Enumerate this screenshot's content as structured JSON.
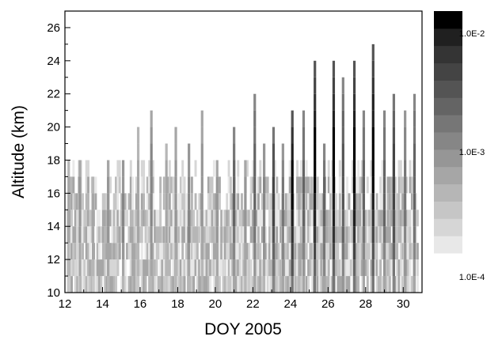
{
  "chart_data": {
    "type": "heatmap",
    "xlabel": "DOY 2005",
    "ylabel": "Altitude (km)",
    "xlim": [
      12,
      31
    ],
    "ylim": [
      10,
      27
    ],
    "x_ticks": [
      12,
      14,
      16,
      18,
      20,
      22,
      24,
      26,
      28,
      30
    ],
    "y_ticks": [
      10,
      12,
      14,
      16,
      18,
      20,
      22,
      24,
      26
    ],
    "x_tick_labels": [
      "12",
      "14",
      "16",
      "18",
      "20",
      "22",
      "24",
      "26",
      "28",
      "30"
    ],
    "y_tick_labels": [
      "10",
      "12",
      "14",
      "16",
      "18",
      "20",
      "22",
      "24",
      "26"
    ],
    "colorbar": {
      "scale": "log",
      "range": [
        0.0001,
        0.015
      ],
      "labels": [
        "1.0E-2",
        "1.0E-3",
        "1.0E-4"
      ],
      "label_values": [
        0.01,
        0.001,
        0.0001
      ],
      "levels": 14,
      "colors": [
        "#e8e8e8",
        "#d6d6d6",
        "#c6c6c6",
        "#b6b6b6",
        "#a6a6a6",
        "#969696",
        "#868686",
        "#767676",
        "#646464",
        "#545454",
        "#444444",
        "#343434",
        "#202020",
        "#000000"
      ]
    },
    "altitude_bins_km": [
      10,
      11,
      12,
      13,
      14,
      15,
      16,
      17,
      18,
      19,
      20,
      21,
      22,
      23,
      24,
      25,
      26
    ],
    "columns": [
      {
        "doy": 12.2,
        "top": 18.5,
        "max_level": 4
      },
      {
        "doy": 12.8,
        "top": 18.5,
        "max_level": 5
      },
      {
        "doy": 13.5,
        "top": 17.5,
        "max_level": 4
      },
      {
        "doy": 14.3,
        "top": 18.5,
        "max_level": 5
      },
      {
        "doy": 15.1,
        "top": 18.5,
        "max_level": 6
      },
      {
        "doy": 15.9,
        "top": 20.5,
        "max_level": 4
      },
      {
        "doy": 16.6,
        "top": 21.5,
        "max_level": 6
      },
      {
        "doy": 17.4,
        "top": 19.5,
        "max_level": 4
      },
      {
        "doy": 17.9,
        "top": 20.5,
        "max_level": 5
      },
      {
        "doy": 18.6,
        "top": 19.5,
        "max_level": 6
      },
      {
        "doy": 19.3,
        "top": 21.5,
        "max_level": 5
      },
      {
        "doy": 20.1,
        "top": 18.5,
        "max_level": 5
      },
      {
        "doy": 21.0,
        "top": 20.5,
        "max_level": 8
      },
      {
        "doy": 21.6,
        "top": 18.5,
        "max_level": 5
      },
      {
        "doy": 22.1,
        "top": 22.5,
        "max_level": 8
      },
      {
        "doy": 22.6,
        "top": 19.5,
        "max_level": 6
      },
      {
        "doy": 23.1,
        "top": 20.5,
        "max_level": 10
      },
      {
        "doy": 23.6,
        "top": 19.5,
        "max_level": 7
      },
      {
        "doy": 24.1,
        "top": 21.5,
        "max_level": 13
      },
      {
        "doy": 24.7,
        "top": 21.5,
        "max_level": 8
      },
      {
        "doy": 25.3,
        "top": 24.5,
        "max_level": 13
      },
      {
        "doy": 25.8,
        "top": 19.5,
        "max_level": 8
      },
      {
        "doy": 26.3,
        "top": 24.5,
        "max_level": 13
      },
      {
        "doy": 26.8,
        "top": 23.5,
        "max_level": 9
      },
      {
        "doy": 27.4,
        "top": 24.5,
        "max_level": 13
      },
      {
        "doy": 27.9,
        "top": 21.5,
        "max_level": 8
      },
      {
        "doy": 28.4,
        "top": 25.5,
        "max_level": 13
      },
      {
        "doy": 29.0,
        "top": 21.5,
        "max_level": 8
      },
      {
        "doy": 29.5,
        "top": 22.5,
        "max_level": 10
      },
      {
        "doy": 30.1,
        "top": 21.5,
        "max_level": 7
      },
      {
        "doy": 30.6,
        "top": 22.5,
        "max_level": 8
      }
    ]
  }
}
